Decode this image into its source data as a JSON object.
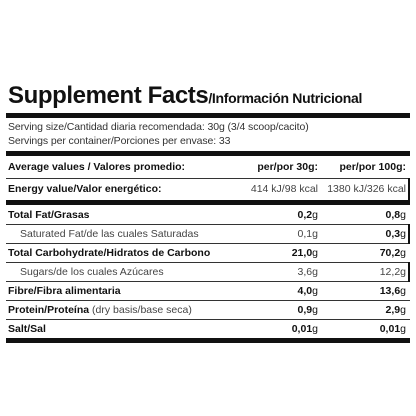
{
  "title": {
    "main": "Supplement Facts",
    "sub": "/Información Nutricional"
  },
  "serving_size": "Serving size/Cantidad diaria recomendada: 30g (3/4 scoop/cacito)",
  "servings_per_container": "Servings per container/Porciones per envase: 33",
  "header": {
    "label": "Average values / Valores promedio:",
    "col1": "per/por 30g:",
    "col2": "per/por 100g:"
  },
  "energy": {
    "label": "Energy value/Valor energético:",
    "col1": "414 kJ/98 kcal",
    "col2": "1380 kJ/326 kcal"
  },
  "rows": [
    {
      "label": "Total Fat/Grasas",
      "col1": "0,2",
      "col2": "0,8",
      "unit": "g"
    },
    {
      "label": "Saturated Fat/de las cuales Saturadas",
      "col1": "0,1",
      "col2": "0,3",
      "unit": "g"
    },
    {
      "label": "Total Carbohydrate/Hidratos de Carbono",
      "col1": "21,0",
      "col2": "70,2",
      "unit": "g"
    },
    {
      "label": "Sugars/de los cuales Azúcares",
      "col1": "3,6",
      "col2": "12,2",
      "unit": "g"
    },
    {
      "label": "Fibre/Fibra alimentaria",
      "col1": "4,0",
      "col2": "13,6",
      "unit": "g"
    },
    {
      "label": "Protein/Proteína",
      "label_extra": " (dry basis/base seca)",
      "col1": "0,9",
      "col2": "2,9",
      "unit": "g"
    },
    {
      "label": "Salt/Sal",
      "col1": "0,01",
      "col2": "0,01",
      "unit": "g"
    }
  ]
}
